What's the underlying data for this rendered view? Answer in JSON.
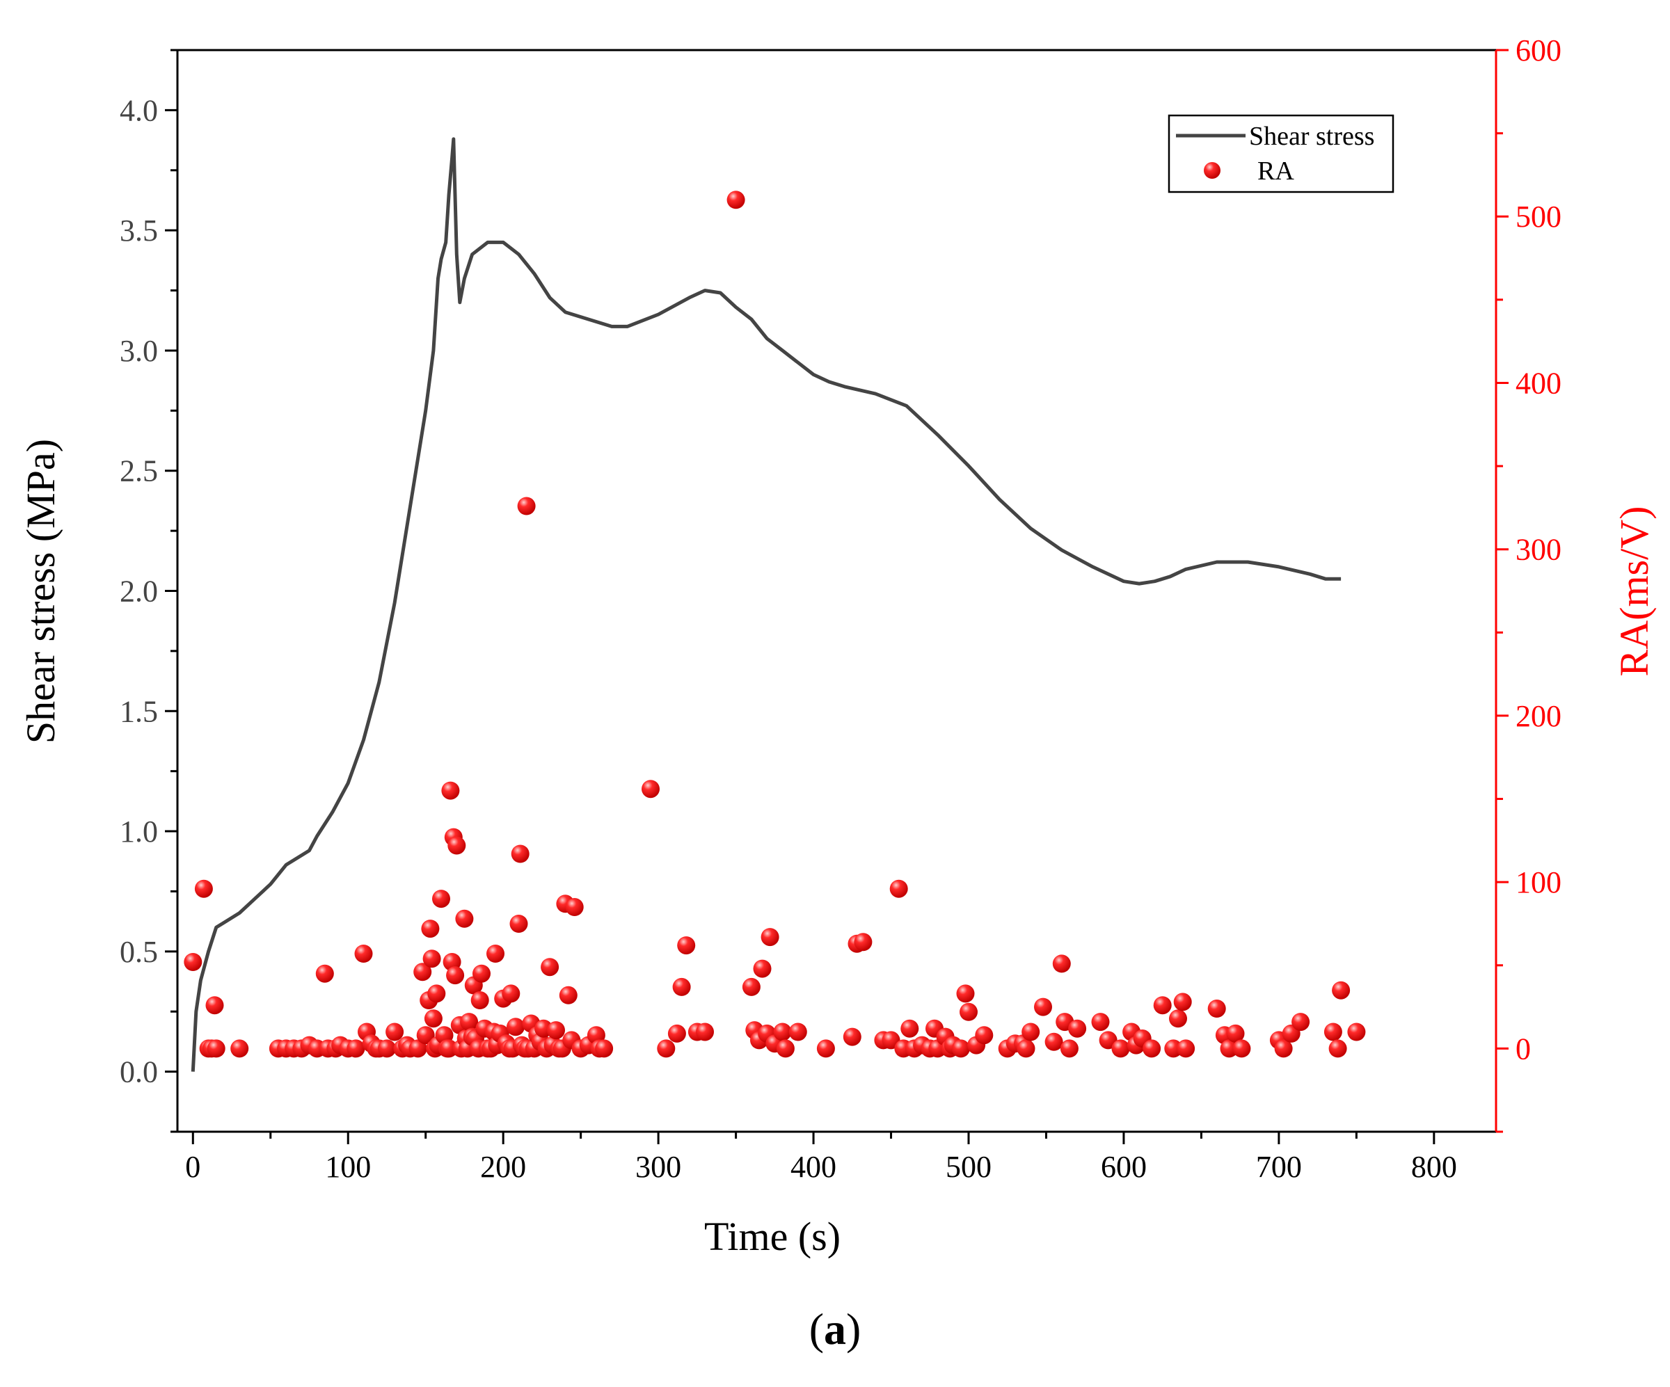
{
  "chart_data": {
    "type": "line+scatter",
    "caption": "(a)",
    "caption_open": "(",
    "caption_letter": "a",
    "caption_close": ")",
    "xlabel": "Time (s)",
    "ylabel_left": "Shear stress (MPa)",
    "ylabel_right": "RA(ms/V)",
    "xlim": [
      -10,
      840
    ],
    "ylim_left": [
      -0.25,
      4.25
    ],
    "ylim_right": [
      -50,
      600
    ],
    "x_ticks": [
      0,
      100,
      200,
      300,
      400,
      500,
      600,
      700,
      800
    ],
    "y_left_ticks": [
      0.0,
      0.5,
      1.0,
      1.5,
      2.0,
      2.5,
      3.0,
      3.5,
      4.0
    ],
    "y_left_tick_labels": [
      "0.0",
      "0.5",
      "1.0",
      "1.5",
      "2.0",
      "2.5",
      "3.0",
      "3.5",
      "4.0"
    ],
    "y_right_ticks": [
      0,
      100,
      200,
      300,
      400,
      500,
      600
    ],
    "legend": {
      "location": "top-right",
      "entries": [
        "Shear stress",
        "RA"
      ]
    },
    "colors": {
      "line": "#444444",
      "points": "#ff0000",
      "right_axis": "#ff0000"
    },
    "series": [
      {
        "name": "Shear stress",
        "kind": "line",
        "axis": "left",
        "x": [
          0,
          2,
          5,
          10,
          15,
          20,
          30,
          40,
          50,
          60,
          70,
          75,
          80,
          90,
          100,
          110,
          120,
          130,
          140,
          150,
          155,
          158,
          160,
          163,
          165,
          167,
          168,
          170,
          172,
          175,
          180,
          190,
          200,
          210,
          220,
          230,
          240,
          250,
          260,
          270,
          280,
          300,
          320,
          330,
          340,
          350,
          360,
          370,
          380,
          390,
          400,
          410,
          420,
          440,
          460,
          480,
          500,
          520,
          540,
          560,
          580,
          600,
          610,
          620,
          630,
          640,
          660,
          680,
          700,
          720,
          730,
          740
        ],
        "y": [
          0.0,
          0.25,
          0.38,
          0.5,
          0.6,
          0.62,
          0.66,
          0.72,
          0.78,
          0.86,
          0.9,
          0.92,
          0.98,
          1.08,
          1.2,
          1.38,
          1.62,
          1.95,
          2.35,
          2.75,
          3.0,
          3.3,
          3.38,
          3.45,
          3.65,
          3.8,
          3.88,
          3.4,
          3.2,
          3.3,
          3.4,
          3.45,
          3.45,
          3.4,
          3.32,
          3.22,
          3.16,
          3.14,
          3.12,
          3.1,
          3.1,
          3.15,
          3.22,
          3.25,
          3.24,
          3.18,
          3.13,
          3.05,
          3.0,
          2.95,
          2.9,
          2.87,
          2.85,
          2.82,
          2.77,
          2.65,
          2.52,
          2.38,
          2.26,
          2.17,
          2.1,
          2.04,
          2.03,
          2.04,
          2.06,
          2.09,
          2.12,
          2.12,
          2.1,
          2.07,
          2.05,
          2.05
        ]
      },
      {
        "name": "RA",
        "kind": "scatter",
        "axis": "right",
        "x": [
          0,
          7,
          10,
          12,
          14,
          15,
          30,
          55,
          60,
          65,
          70,
          75,
          80,
          85,
          87,
          92,
          95,
          100,
          105,
          110,
          112,
          115,
          118,
          120,
          125,
          130,
          135,
          138,
          140,
          145,
          148,
          150,
          152,
          153,
          154,
          155,
          156,
          157,
          158,
          160,
          162,
          164,
          165,
          166,
          167,
          168,
          169,
          170,
          172,
          173,
          175,
          176,
          177,
          178,
          180,
          181,
          182,
          184,
          185,
          186,
          188,
          190,
          192,
          194,
          195,
          196,
          198,
          200,
          202,
          204,
          205,
          206,
          208,
          210,
          211,
          212,
          214,
          215,
          216,
          218,
          220,
          222,
          224,
          226,
          228,
          230,
          232,
          234,
          236,
          238,
          240,
          242,
          244,
          246,
          250,
          255,
          260,
          262,
          265,
          295,
          305,
          312,
          315,
          318,
          325,
          330,
          350,
          360,
          362,
          365,
          367,
          370,
          372,
          375,
          380,
          382,
          390,
          408,
          425,
          428,
          432,
          445,
          450,
          455,
          458,
          462,
          465,
          470,
          475,
          478,
          480,
          485,
          488,
          490,
          495,
          498,
          500,
          505,
          510,
          525,
          530,
          535,
          537,
          540,
          548,
          555,
          560,
          562,
          565,
          570,
          585,
          590,
          598,
          605,
          608,
          612,
          618,
          625,
          632,
          635,
          638,
          640,
          660,
          665,
          668,
          672,
          676,
          700,
          703,
          708,
          714,
          735,
          738,
          740,
          750
        ],
        "y": [
          52,
          96,
          0,
          0,
          26,
          0,
          0,
          0,
          0,
          0,
          0,
          2,
          0,
          45,
          0,
          0,
          2,
          0,
          0,
          57,
          10,
          3,
          0,
          0,
          0,
          10,
          0,
          2,
          0,
          0,
          46,
          8,
          29,
          72,
          54,
          18,
          0,
          33,
          2,
          90,
          8,
          0,
          0,
          155,
          52,
          127,
          44,
          122,
          14,
          0,
          78,
          6,
          0,
          16,
          7,
          38,
          6,
          0,
          29,
          45,
          12,
          0,
          0,
          10,
          57,
          2,
          9,
          30,
          3,
          0,
          33,
          0,
          13,
          75,
          117,
          2,
          0,
          326,
          0,
          15,
          0,
          8,
          4,
          12,
          0,
          49,
          2,
          11,
          0,
          0,
          87,
          32,
          5,
          85,
          0,
          2,
          8,
          0,
          0,
          156,
          0,
          9,
          37,
          62,
          10,
          10,
          510,
          37,
          11,
          5,
          48,
          9,
          67,
          3,
          10,
          0,
          10,
          0,
          7,
          63,
          64,
          5,
          5,
          96,
          0,
          12,
          0,
          2,
          0,
          12,
          0,
          7,
          0,
          2,
          0,
          33,
          22,
          2,
          8,
          0,
          3,
          3,
          0,
          10,
          25,
          4,
          51,
          16,
          0,
          12,
          16,
          5,
          0,
          10,
          2,
          6,
          0,
          26,
          0,
          18,
          28,
          0,
          24,
          8,
          0,
          9,
          0,
          5,
          0,
          9,
          16,
          10,
          0,
          35,
          10
        ]
      }
    ]
  }
}
